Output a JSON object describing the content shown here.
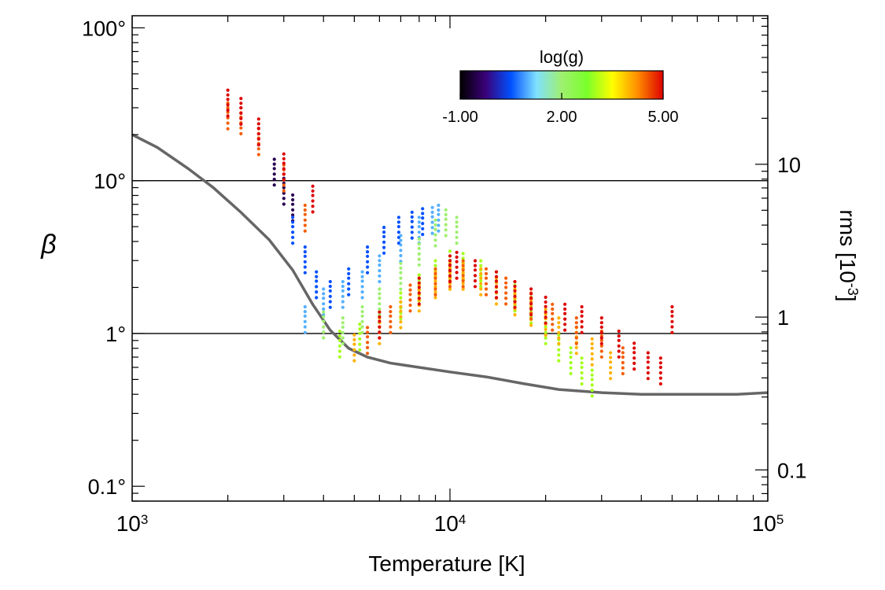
{
  "chart_data": {
    "type": "scatter",
    "title": "",
    "xlabel": "Temperature [K]",
    "ylabel": "β",
    "y2label_main": "rms [10",
    "y2label_exp": "-3",
    "y2label_end": "]",
    "x_scale": "log",
    "y_scale": "log",
    "xlim": [
      1000,
      100000
    ],
    "ylim": [
      0.08,
      120
    ],
    "x_ticks": [
      {
        "value": 1000,
        "base": "10",
        "exp": "3"
      },
      {
        "value": 10000,
        "base": "10",
        "exp": "4"
      },
      {
        "value": 100000,
        "base": "10",
        "exp": "5"
      }
    ],
    "y_ticks": [
      {
        "value": 0.1,
        "label": "0.1°"
      },
      {
        "value": 1,
        "label": "1°"
      },
      {
        "value": 10,
        "label": "10°"
      },
      {
        "value": 100,
        "label": "100°"
      }
    ],
    "y2_ticks": [
      {
        "beta": 0.128,
        "label": "0.1"
      },
      {
        "beta": 1.28,
        "label": "1"
      },
      {
        "beta": 12.8,
        "label": "10"
      }
    ],
    "reference_lines": [
      1,
      10
    ],
    "colorbar": {
      "title": "log(g)",
      "min": -1.0,
      "max": 5.0,
      "tick_labels": [
        "-1.00",
        "2.00",
        "5.00"
      ],
      "colormap": [
        "#000000",
        "#3a0078",
        "#0050ff",
        "#7fe0ff",
        "#9ff070",
        "#7aff2a",
        "#ffff00",
        "#ff8c00",
        "#dd0000"
      ]
    },
    "rms_curve": {
      "name": "rms",
      "color": "#666666",
      "x": [
        1000,
        1200,
        1500,
        1800,
        2200,
        2700,
        3200,
        3700,
        4200,
        4800,
        5500,
        6500,
        8000,
        10000,
        13000,
        17000,
        22000,
        30000,
        40000,
        60000,
        80000,
        100000
      ],
      "y": [
        20,
        16.5,
        12,
        9,
        6.2,
        4.1,
        2.6,
        1.55,
        1.05,
        0.8,
        0.7,
        0.64,
        0.6,
        0.56,
        0.52,
        0.47,
        0.43,
        0.41,
        0.4,
        0.4,
        0.4,
        0.41
      ]
    },
    "series": [
      {
        "logg": -0.5,
        "x": [
          2800,
          3000,
          3200
        ],
        "y": [
          12,
          9,
          7
        ]
      },
      {
        "logg": 0.5,
        "x": [
          3200,
          3500,
          3800,
          4200,
          4800,
          5500,
          6200,
          6900,
          7600,
          8200
        ],
        "y": [
          5,
          3.2,
          2.2,
          1.9,
          2.3,
          3.2,
          4.3,
          5,
          5.4,
          5.7
        ]
      },
      {
        "logg": 1.0,
        "x": [
          3500,
          4000,
          4600,
          5300,
          6000,
          7000,
          8000,
          8800,
          9200
        ],
        "y": [
          1.3,
          1.7,
          1.9,
          2.2,
          2.8,
          3.8,
          5,
          5.8,
          6
        ]
      },
      {
        "logg": 2.0,
        "x": [
          4000,
          4600,
          5300,
          6000,
          7000,
          8000,
          9000,
          9700,
          10500
        ],
        "y": [
          1.2,
          1.1,
          1.3,
          1.7,
          2.5,
          3.6,
          4.8,
          5.6,
          5
        ]
      },
      {
        "logg": 3.0,
        "x": [
          4500,
          5200,
          6000,
          7000,
          8000,
          9000,
          10000,
          11000,
          12500,
          14000,
          16000,
          18000,
          20000,
          22000,
          24000,
          26000,
          28000
        ],
        "y": [
          0.9,
          1.0,
          1.2,
          1.6,
          2.1,
          2.6,
          3,
          2.9,
          2.6,
          2.2,
          1.8,
          1.5,
          1.1,
          0.85,
          0.7,
          0.6,
          0.5
        ]
      },
      {
        "logg": 4.0,
        "x": [
          5000,
          6000,
          7000,
          8000,
          9000,
          10000,
          11000,
          12500,
          14000,
          16000,
          18000,
          20000,
          22000,
          25000,
          28000,
          32000
        ],
        "y": [
          0.85,
          1.1,
          1.4,
          1.8,
          2.2,
          2.5,
          2.5,
          2.3,
          2.0,
          1.7,
          1.45,
          1.25,
          1.1,
          0.95,
          0.8,
          0.65
        ]
      },
      {
        "logg": 4.5,
        "x": [
          2000,
          2200,
          2500,
          3000,
          3500,
          5500,
          6500,
          7500,
          9000,
          10000,
          11000,
          13000,
          15000,
          18000,
          21000,
          25000,
          30000,
          35000
        ],
        "y": [
          28,
          26,
          19,
          11,
          6,
          0.95,
          1.3,
          1.8,
          2.3,
          2.6,
          2.6,
          2.3,
          2.0,
          1.6,
          1.35,
          1.1,
          0.9,
          0.7
        ]
      },
      {
        "logg": 5.0,
        "x": [
          2000,
          2200,
          2500,
          3000,
          3700,
          6000,
          8000,
          10000,
          10500,
          12000,
          14000,
          16000,
          18000,
          20000,
          23000,
          26000,
          30000,
          34000,
          38000,
          42000,
          46000,
          50000
        ],
        "y": [
          34,
          30,
          22,
          13,
          8,
          1.2,
          2.0,
          2.8,
          2.95,
          2.6,
          2.2,
          1.9,
          1.7,
          1.5,
          1.35,
          1.3,
          1.1,
          0.9,
          0.75,
          0.65,
          0.6,
          1.3
        ]
      }
    ]
  }
}
